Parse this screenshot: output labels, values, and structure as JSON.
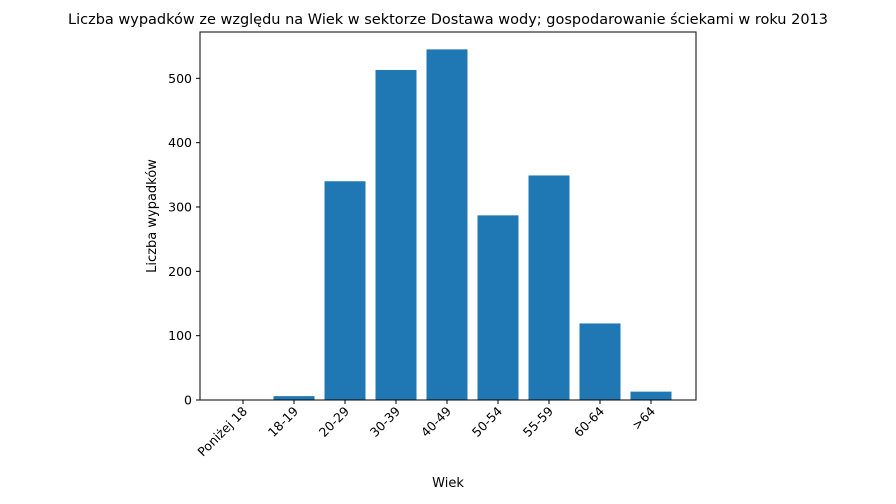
{
  "chart_data": {
    "type": "bar",
    "title": "Liczba wypadków ze względu na Wiek w sektorze Dostawa wody; gospodarowanie ściekami w roku 2013",
    "xlabel": "Wiek",
    "ylabel": "Liczba wypadków",
    "categories": [
      "Poniżej 18",
      "18-19",
      "20-29",
      "30-39",
      "40-49",
      "50-54",
      "55-59",
      "60-64",
      ">64"
    ],
    "values": [
      0,
      6,
      340,
      513,
      545,
      287,
      349,
      119,
      13
    ],
    "yticks": [
      0,
      100,
      200,
      300,
      400,
      500
    ],
    "ylim": [
      0,
      572
    ],
    "bar_color": "#1f77b4",
    "grid": false,
    "legend": "none"
  }
}
